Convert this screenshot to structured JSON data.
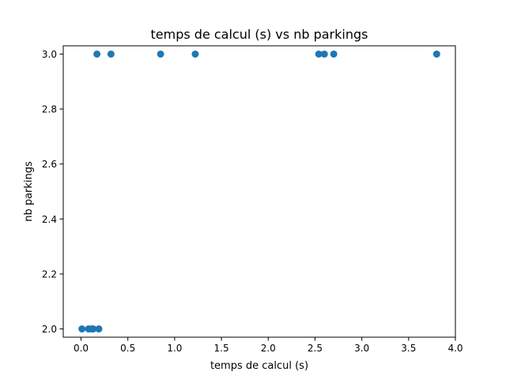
{
  "chart_data": {
    "type": "scatter",
    "title": "temps de calcul (s)   vs   nb parkings",
    "xlabel": "temps de calcul (s)",
    "ylabel": "nb parkings",
    "xlim": [
      -0.19,
      4.0
    ],
    "ylim": [
      1.97,
      3.03
    ],
    "xticks": [
      0.0,
      0.5,
      1.0,
      1.5,
      2.0,
      2.5,
      3.0,
      3.5,
      4.0
    ],
    "xtick_labels": [
      "0.0",
      "0.5",
      "1.0",
      "1.5",
      "2.0",
      "2.5",
      "3.0",
      "3.5",
      "4.0"
    ],
    "yticks": [
      2.0,
      2.2,
      2.4,
      2.6,
      2.8,
      3.0
    ],
    "ytick_labels": [
      "2.0",
      "2.2",
      "2.4",
      "2.6",
      "2.8",
      "3.0"
    ],
    "grid": false,
    "marker_color": "#1f77b4",
    "points": [
      {
        "x": 0.01,
        "y": 2.0
      },
      {
        "x": 0.08,
        "y": 2.0
      },
      {
        "x": 0.11,
        "y": 2.0
      },
      {
        "x": 0.13,
        "y": 2.0
      },
      {
        "x": 0.19,
        "y": 2.0
      },
      {
        "x": 0.17,
        "y": 3.0
      },
      {
        "x": 0.32,
        "y": 3.0
      },
      {
        "x": 0.85,
        "y": 3.0
      },
      {
        "x": 1.22,
        "y": 3.0
      },
      {
        "x": 2.54,
        "y": 3.0
      },
      {
        "x": 2.6,
        "y": 3.0
      },
      {
        "x": 2.7,
        "y": 3.0
      },
      {
        "x": 3.8,
        "y": 3.0
      }
    ]
  }
}
